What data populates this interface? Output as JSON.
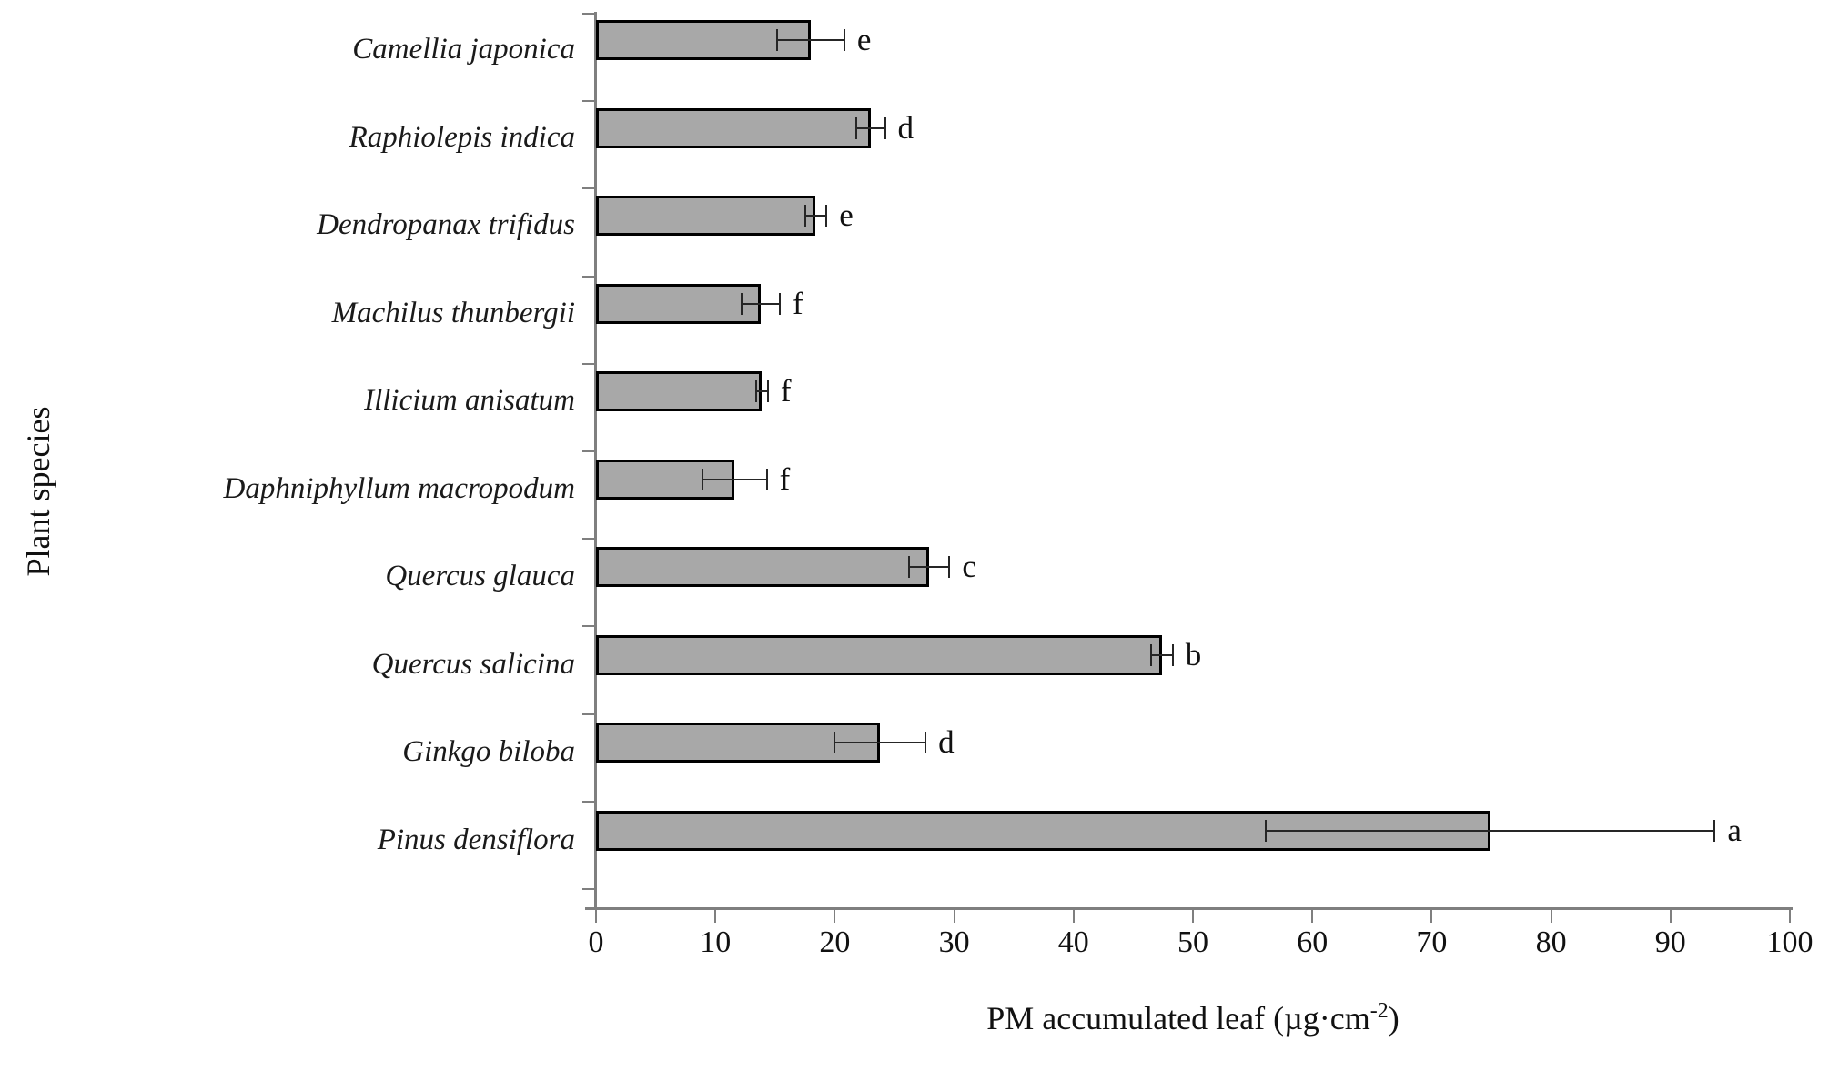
{
  "chart_data": {
    "type": "bar",
    "orientation": "horizontal",
    "title": "",
    "xlabel": "PM accumulated leaf (µg·cm⁻²)",
    "xlabel_prefix": "PM accumulated leaf (µg·cm",
    "xlabel_sup": "-2",
    "xlabel_suffix": ")",
    "ylabel": "Plant species",
    "xlim": [
      0,
      100
    ],
    "xticks": [
      0,
      10,
      20,
      30,
      40,
      50,
      60,
      70,
      80,
      90,
      100
    ],
    "grid": false,
    "legend": false,
    "bar_color": "#a8a8a8",
    "bar_border_color": "#000000",
    "axis_color": "#7f7f7f",
    "error_bar_color": "#262626",
    "categories": [
      "Camellia japonica",
      "Raphiolepis indica",
      "Dendropanax trifidus",
      "Machilus thunbergii",
      "Illicium anisatum",
      "Daphniphyllum macropodum",
      "Quercus glauca",
      "Quercus salicina",
      "Ginkgo biloba",
      "Pinus densiflora"
    ],
    "values": [
      18,
      23,
      18.4,
      13.8,
      13.9,
      11.6,
      27.9,
      47.4,
      23.8,
      74.9
    ],
    "errors": [
      2.8,
      1.2,
      0.9,
      1.6,
      0.5,
      2.7,
      1.7,
      0.9,
      3.8,
      18.8
    ],
    "sig_letters": [
      "e",
      "d",
      "e",
      "f",
      "f",
      "f",
      "c",
      "b",
      "d",
      "a"
    ]
  }
}
